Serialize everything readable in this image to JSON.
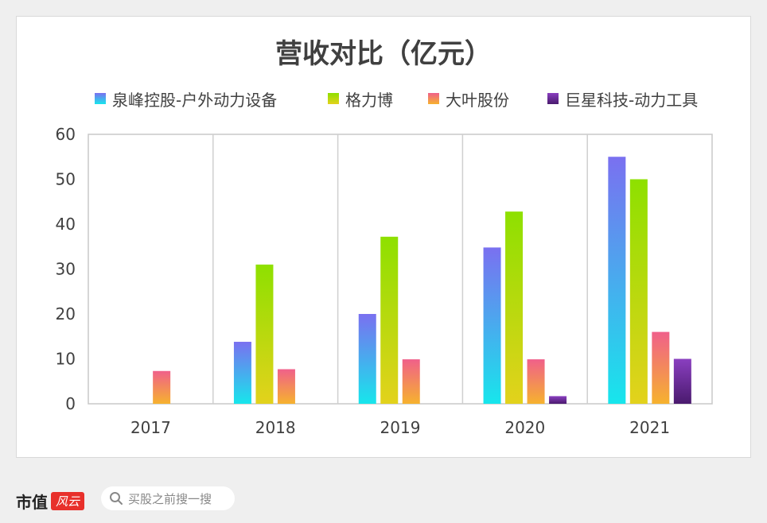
{
  "chart_data": {
    "type": "bar",
    "title": "营收对比（亿元）",
    "categories": [
      "2017",
      "2018",
      "2019",
      "2020",
      "2021"
    ],
    "series": [
      {
        "name": "泉峰控股-户外动力设备",
        "values": [
          null,
          13.8,
          20,
          34.8,
          55
        ],
        "color_top": "#7a70f0",
        "color_bottom": "#17e6ec"
      },
      {
        "name": "格力博",
        "values": [
          null,
          31,
          37.2,
          42.8,
          50
        ],
        "color_top": "#8ee000",
        "color_bottom": "#e3d21c"
      },
      {
        "name": "大叶股份",
        "values": [
          7.3,
          7.7,
          9.9,
          9.9,
          16
        ],
        "color_top": "#f0608a",
        "color_bottom": "#f6b22e"
      },
      {
        "name": "巨星科技-动力工具",
        "values": [
          null,
          null,
          null,
          1.7,
          10
        ],
        "color_top": "#8a3fc0",
        "color_bottom": "#4a1a6e"
      }
    ],
    "ylim": [
      0,
      60
    ],
    "yticks": [
      "0",
      "10",
      "20",
      "30",
      "40",
      "50",
      "60"
    ],
    "grid": "vertical separators between categories",
    "legend": "top"
  },
  "footer": {
    "logo_main": "市值",
    "logo_red": "风云",
    "search_placeholder": "买股之前搜一搜"
  }
}
